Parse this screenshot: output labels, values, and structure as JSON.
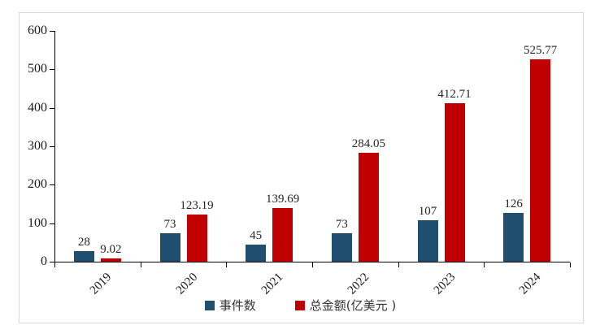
{
  "chart_data": {
    "type": "bar",
    "title": "",
    "xlabel": "",
    "ylabel": "",
    "categories": [
      "2019",
      "2020",
      "2021",
      "2022",
      "2023",
      "2024"
    ],
    "series": [
      {
        "name": "事件数",
        "color": "#1f4e6e",
        "values": [
          28,
          73,
          45,
          73,
          107,
          126
        ],
        "labels": [
          "28",
          "73",
          "45",
          "73",
          "107",
          "126"
        ]
      },
      {
        "name": "总金额(亿美元 )",
        "color": "#c00000",
        "values": [
          9.02,
          123.19,
          139.69,
          284.05,
          412.71,
          525.77
        ],
        "labels": [
          "9.02",
          "123.19",
          "139.69",
          "284.05",
          "412.71",
          "525.77"
        ]
      }
    ],
    "ylim": [
      0,
      600
    ],
    "yticks": [
      0,
      100,
      200,
      300,
      400,
      500,
      600
    ],
    "grid": false,
    "legend_position": "bottom-center"
  },
  "colors": {
    "axis": "#000000",
    "tick_text": "#1a1a1a",
    "value_text": "#262626",
    "frame_border": "#d9d9d9",
    "background": "#ffffff"
  }
}
